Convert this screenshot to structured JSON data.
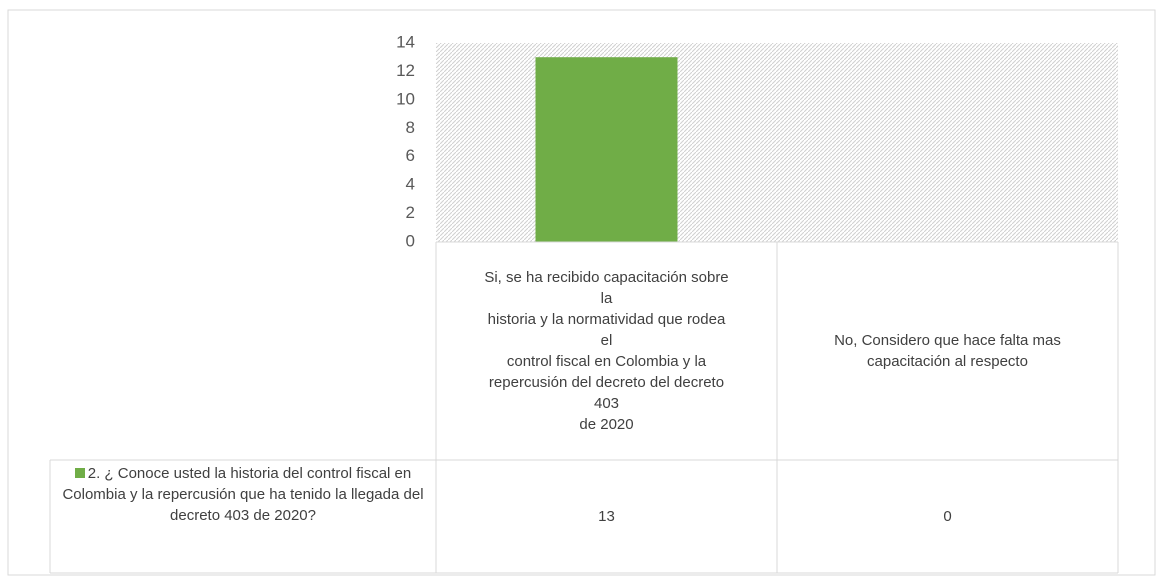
{
  "chart_data": {
    "type": "bar",
    "categories": [
      "Si, se ha recibido capacitación sobre\nla\nhistoria y la normatividad que rodea\nel\ncontrol fiscal en Colombia y la\nrepercusión del decreto del decreto\n403\nde 2020",
      "No, Considero que hace falta mas\ncapacitación al respecto"
    ],
    "series": [
      {
        "name": "2. ¿ Conoce usted la historia del control fiscal en Colombia y la repercusión que ha tenido la llegada del decreto 403 de 2020?",
        "color": "#70ad47",
        "values": [
          13,
          0
        ]
      }
    ],
    "ylim": [
      0,
      14
    ],
    "yticks": [
      0,
      2,
      4,
      6,
      8,
      10,
      12,
      14
    ],
    "data_table": true
  }
}
